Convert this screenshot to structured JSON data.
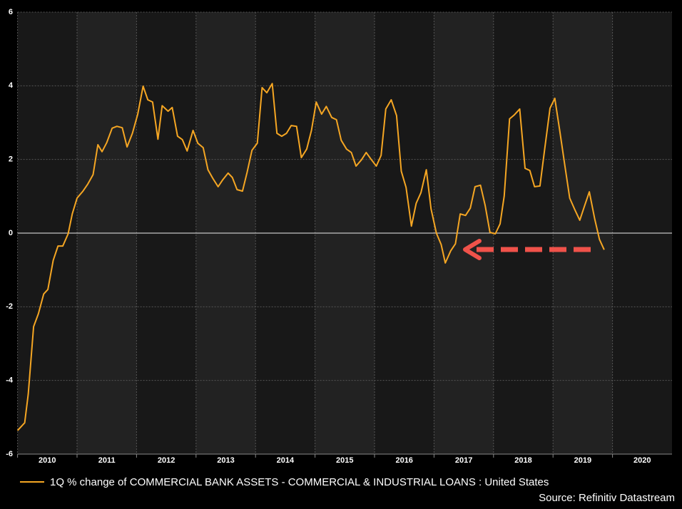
{
  "chart_data": {
    "type": "line",
    "x": [
      2010.0,
      2010.12,
      2010.18,
      2010.27,
      2010.35,
      2010.44,
      2010.51,
      2010.6,
      2010.68,
      2010.76,
      2010.85,
      2010.92,
      2011.0,
      2011.1,
      2011.18,
      2011.27,
      2011.35,
      2011.42,
      2011.5,
      2011.59,
      2011.67,
      2011.76,
      2011.84,
      2011.93,
      2012.02,
      2012.11,
      2012.19,
      2012.27,
      2012.36,
      2012.43,
      2012.53,
      2012.6,
      2012.69,
      2012.77,
      2012.85,
      2012.95,
      2013.03,
      2013.12,
      2013.2,
      2013.28,
      2013.37,
      2013.45,
      2013.54,
      2013.61,
      2013.69,
      2013.78,
      2013.86,
      2013.94,
      2014.03,
      2014.11,
      2014.19,
      2014.28,
      2014.36,
      2014.44,
      2014.52,
      2014.6,
      2014.69,
      2014.77,
      2014.86,
      2014.94,
      2015.02,
      2015.11,
      2015.19,
      2015.28,
      2015.36,
      2015.44,
      2015.53,
      2015.61,
      2015.69,
      2015.78,
      2015.86,
      2015.94,
      2016.03,
      2016.11,
      2016.19,
      2016.28,
      2016.37,
      2016.45,
      2016.53,
      2016.62,
      2016.7,
      2016.78,
      2016.87,
      2016.95,
      2017.04,
      2017.12,
      2017.19,
      2017.28,
      2017.36,
      2017.44,
      2017.53,
      2017.61,
      2017.69,
      2017.78,
      2017.86,
      2017.94,
      2018.03,
      2018.11,
      2018.18,
      2018.27,
      2018.35,
      2018.44,
      2018.53,
      2018.61,
      2018.69,
      2018.78,
      2018.86,
      2018.95,
      2019.03,
      2019.11,
      2019.2,
      2019.28,
      2019.36,
      2019.45,
      2019.53,
      2019.61,
      2019.7,
      2019.78,
      2019.86
    ],
    "series": [
      {
        "name": "1Q % change of COMMERCIAL BANK ASSETS - COMMERCIAL & INDUSTRIAL LOANS : United States",
        "color": "#f5a623",
        "values": [
          -5.36,
          -5.15,
          -4.37,
          -2.54,
          -2.19,
          -1.65,
          -1.53,
          -0.74,
          -0.35,
          -0.35,
          -0.02,
          0.52,
          0.95,
          1.14,
          1.33,
          1.59,
          2.4,
          2.21,
          2.46,
          2.85,
          2.9,
          2.86,
          2.34,
          2.71,
          3.23,
          3.99,
          3.62,
          3.56,
          2.55,
          3.46,
          3.31,
          3.41,
          2.63,
          2.54,
          2.23,
          2.79,
          2.44,
          2.32,
          1.72,
          1.49,
          1.26,
          1.45,
          1.63,
          1.51,
          1.18,
          1.14,
          1.66,
          2.25,
          2.44,
          3.95,
          3.81,
          4.06,
          2.71,
          2.63,
          2.71,
          2.92,
          2.9,
          2.05,
          2.28,
          2.79,
          3.56,
          3.23,
          3.44,
          3.14,
          3.08,
          2.52,
          2.28,
          2.19,
          1.82,
          1.99,
          2.19,
          2.01,
          1.82,
          2.11,
          3.37,
          3.62,
          3.19,
          1.68,
          1.24,
          0.19,
          0.81,
          1.1,
          1.72,
          0.66,
          0,
          -0.31,
          -0.81,
          -0.48,
          -0.29,
          0.52,
          0.48,
          0.68,
          1.26,
          1.3,
          0.75,
          0.02,
          -0.02,
          0.25,
          1.01,
          3.1,
          3.21,
          3.37,
          1.76,
          1.7,
          1.26,
          1.28,
          2.28,
          3.39,
          3.66,
          2.81,
          1.82,
          0.95,
          0.66,
          0.35,
          0.74,
          1.12,
          0.39,
          -0.17,
          -0.45
        ]
      }
    ],
    "xlim": [
      2010,
      2021
    ],
    "xticks": [
      2010,
      2011,
      2012,
      2013,
      2014,
      2015,
      2016,
      2017,
      2018,
      2019,
      2020
    ],
    "ylim": [
      -6,
      6
    ],
    "yticks": [
      -6,
      -4,
      -2,
      0,
      2,
      4,
      6
    ],
    "grid": true,
    "source": "Source: Refinitiv Datastream"
  }
}
